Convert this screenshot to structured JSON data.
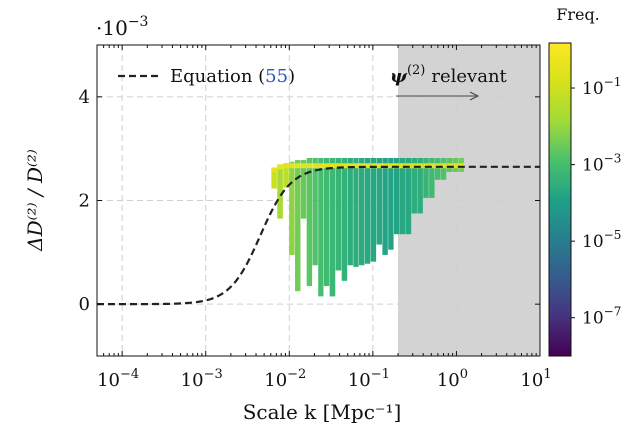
{
  "chart_data": {
    "type": "heatmap",
    "y_scale_label": {
      "base": "·10",
      "exp": "−3"
    },
    "ylabel": "ΔD⁽²⁾ / D⁽²⁾",
    "xlabel": "Scale k [Mpc⁻¹]",
    "x_scale": "log",
    "xlim": [
      5e-05,
      10
    ],
    "ylim": [
      -0.001,
      0.005
    ],
    "x_ticks": [
      {
        "value": 0.0001,
        "base": "10",
        "exp": "−4"
      },
      {
        "value": 0.001,
        "base": "10",
        "exp": "−3"
      },
      {
        "value": 0.01,
        "base": "10",
        "exp": "−2"
      },
      {
        "value": 0.1,
        "base": "10",
        "exp": "−1"
      },
      {
        "value": 1,
        "base": "10",
        "exp": "0"
      },
      {
        "value": 10,
        "base": "10",
        "exp": "1"
      }
    ],
    "y_ticks": [
      {
        "value": 0,
        "label": "0"
      },
      {
        "value": 0.002,
        "label": "2"
      },
      {
        "value": 0.004,
        "label": "4"
      }
    ],
    "grid": true,
    "legend": {
      "position": "top-left",
      "entry_text": "Equation (",
      "entry_ref": "55",
      "entry_close": ")"
    },
    "shaded_region": {
      "x_start": 0.2,
      "x_end": 10,
      "label_symbol": "ψ",
      "label_exp": "(2)",
      "label_text": "relevant",
      "color": "#d3d3d3"
    },
    "colorbar": {
      "title": "Freq.",
      "scale": "log",
      "range": [
        1e-08,
        1.5
      ],
      "ticks": [
        {
          "value": 0.1,
          "base": "10",
          "exp": "−1"
        },
        {
          "value": 0.001,
          "base": "10",
          "exp": "−3"
        },
        {
          "value": 1e-05,
          "base": "10",
          "exp": "−5"
        },
        {
          "value": 1e-07,
          "base": "10",
          "exp": "−7"
        }
      ],
      "colormap": "viridis"
    },
    "equation_curve": {
      "style": "dashed",
      "color": "#222222",
      "asymptote": 0.00265,
      "transition_k": 0.0045,
      "width_decades": 0.42
    },
    "histogram_columns": [
      {
        "k": 0.0066,
        "y_low": 0.00223,
        "y_high": 0.00262,
        "freq": 0.08
      },
      {
        "k": 0.0078,
        "y_low": 0.00165,
        "y_high": 0.00268,
        "freq": 0.02
      },
      {
        "k": 0.0092,
        "y_low": 0.00225,
        "y_high": 0.00272,
        "freq": 0.05
      },
      {
        "k": 0.0108,
        "y_low": 0.00095,
        "y_high": 0.00275,
        "freq": 0.008
      },
      {
        "k": 0.0127,
        "y_low": 0.00025,
        "y_high": 0.00278,
        "freq": 0.004
      },
      {
        "k": 0.0149,
        "y_low": 0.00165,
        "y_high": 0.00278,
        "freq": 0.003
      },
      {
        "k": 0.0175,
        "y_low": 0.00035,
        "y_high": 0.00282,
        "freq": 0.002
      },
      {
        "k": 0.0205,
        "y_low": 0.00075,
        "y_high": 0.00282,
        "freq": 0.0015
      },
      {
        "k": 0.024,
        "y_low": 0.00015,
        "y_high": 0.00282,
        "freq": 0.001
      },
      {
        "k": 0.028,
        "y_low": 0.00035,
        "y_high": 0.00282,
        "freq": 0.0008
      },
      {
        "k": 0.033,
        "y_low": 0.00015,
        "y_high": 0.00282,
        "freq": 0.0006
      },
      {
        "k": 0.039,
        "y_low": 0.00065,
        "y_high": 0.00282,
        "freq": 0.0005
      },
      {
        "k": 0.046,
        "y_low": 0.00045,
        "y_high": 0.00282,
        "freq": 0.0004
      },
      {
        "k": 0.054,
        "y_low": 0.00075,
        "y_high": 0.00282,
        "freq": 0.0003
      },
      {
        "k": 0.063,
        "y_low": 0.00072,
        "y_high": 0.00282,
        "freq": 0.0003
      },
      {
        "k": 0.074,
        "y_low": 0.00075,
        "y_high": 0.00282,
        "freq": 0.00025
      },
      {
        "k": 0.087,
        "y_low": 0.00078,
        "y_high": 0.00282,
        "freq": 0.0002
      },
      {
        "k": 0.102,
        "y_low": 0.00082,
        "y_high": 0.00282,
        "freq": 0.0002
      },
      {
        "k": 0.12,
        "y_low": 0.00115,
        "y_high": 0.00282,
        "freq": 0.0002
      },
      {
        "k": 0.141,
        "y_low": 0.00095,
        "y_high": 0.00282,
        "freq": 0.00015
      },
      {
        "k": 0.165,
        "y_low": 0.00105,
        "y_high": 0.00282,
        "freq": 0.00015
      },
      {
        "k": 0.194,
        "y_low": 0.00135,
        "y_high": 0.00282,
        "freq": 0.00015
      },
      {
        "k": 0.228,
        "y_low": 0.00135,
        "y_high": 0.00282,
        "freq": 0.0002
      },
      {
        "k": 0.268,
        "y_low": 0.00135,
        "y_high": 0.00282,
        "freq": 0.0002
      },
      {
        "k": 0.315,
        "y_low": 0.00175,
        "y_high": 0.00282,
        "freq": 0.0003
      },
      {
        "k": 0.37,
        "y_low": 0.00175,
        "y_high": 0.00282,
        "freq": 0.0003
      },
      {
        "k": 0.435,
        "y_low": 0.00205,
        "y_high": 0.00282,
        "freq": 0.0005
      },
      {
        "k": 0.51,
        "y_low": 0.00205,
        "y_high": 0.00282,
        "freq": 0.0008
      },
      {
        "k": 0.6,
        "y_low": 0.0024,
        "y_high": 0.00282,
        "freq": 0.001
      },
      {
        "k": 0.705,
        "y_low": 0.0024,
        "y_high": 0.00282,
        "freq": 0.0015
      },
      {
        "k": 0.83,
        "y_low": 0.00255,
        "y_high": 0.00282,
        "freq": 0.002
      },
      {
        "k": 0.975,
        "y_low": 0.00255,
        "y_high": 0.00282,
        "freq": 0.003
      },
      {
        "k": 1.15,
        "y_low": 0.00255,
        "y_high": 0.00282,
        "freq": 0.004
      }
    ]
  }
}
